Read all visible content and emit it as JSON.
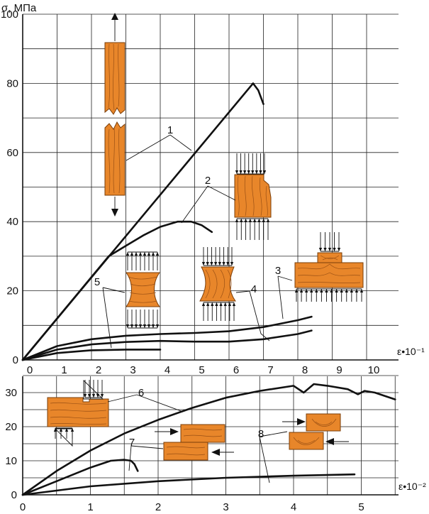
{
  "chart_data": [
    {
      "type": "line",
      "ylabel": "σ, МПа",
      "xlabel": "ε•10⁻¹",
      "x_ticks": [
        "0",
        "1",
        "2",
        "3",
        "4",
        "5",
        "6",
        "7",
        "8",
        "9",
        "10"
      ],
      "y_ticks": [
        "0",
        "20",
        "40",
        "60",
        "80",
        "100"
      ],
      "xlim": [
        0,
        11
      ],
      "ylim": [
        0,
        100
      ],
      "grid": true,
      "series": [
        {
          "name": "1",
          "points": [
            [
              0,
              0
            ],
            [
              6.7,
              80
            ],
            [
              6.85,
              78
            ],
            [
              7,
              74
            ]
          ]
        },
        {
          "name": "2",
          "points": [
            [
              0,
              0
            ],
            [
              2.5,
              30
            ],
            [
              3,
              33
            ],
            [
              3.5,
              36
            ],
            [
              4,
              38.5
            ],
            [
              4.5,
              40
            ],
            [
              4.9,
              40
            ],
            [
              5.2,
              39
            ],
            [
              5.5,
              37
            ]
          ]
        },
        {
          "name": "3",
          "points": [
            [
              0,
              0
            ],
            [
              1,
              4
            ],
            [
              2,
              6
            ],
            [
              3,
              7
            ],
            [
              4,
              7.5
            ],
            [
              5,
              7.8
            ],
            [
              6,
              8.3
            ],
            [
              7,
              9.5
            ],
            [
              8,
              11.5
            ],
            [
              8.4,
              12.5
            ]
          ]
        },
        {
          "name": "4",
          "points": [
            [
              0,
              0
            ],
            [
              1,
              3
            ],
            [
              2,
              4.5
            ],
            [
              3,
              5.2
            ],
            [
              4,
              5.5
            ],
            [
              5,
              5.3
            ],
            [
              6,
              5.3
            ],
            [
              7,
              6
            ],
            [
              8,
              7.5
            ],
            [
              8.4,
              8.5
            ]
          ]
        },
        {
          "name": "5",
          "points": [
            [
              0,
              0
            ],
            [
              1,
              2
            ],
            [
              2,
              2.8
            ],
            [
              3,
              3
            ],
            [
              4,
              3
            ]
          ]
        }
      ],
      "annotations": [
        "1",
        "2",
        "3",
        "4",
        "5"
      ]
    },
    {
      "type": "line",
      "xlabel": "ε•10⁻²",
      "x_ticks": [
        "0",
        "1",
        "2",
        "3",
        "4",
        "5"
      ],
      "y_ticks": [
        "0",
        "10",
        "20",
        "30"
      ],
      "xlim": [
        0,
        5.5
      ],
      "ylim": [
        0,
        36
      ],
      "grid": true,
      "series": [
        {
          "name": "6",
          "points": [
            [
              0,
              0
            ],
            [
              0.5,
              7
            ],
            [
              1,
              13
            ],
            [
              1.5,
              18
            ],
            [
              2,
              22
            ],
            [
              2.5,
              25.5
            ],
            [
              3,
              28.5
            ],
            [
              3.5,
              30.5
            ],
            [
              4,
              32
            ],
            [
              4.15,
              30
            ],
            [
              4.3,
              32.5
            ],
            [
              4.5,
              32
            ],
            [
              4.8,
              31
            ],
            [
              4.95,
              29.5
            ],
            [
              5.05,
              30.5
            ],
            [
              5.2,
              30
            ],
            [
              5.5,
              28
            ]
          ]
        },
        {
          "name": "7",
          "points": [
            [
              0,
              0
            ],
            [
              0.5,
              4
            ],
            [
              1,
              8
            ],
            [
              1.3,
              10
            ],
            [
              1.5,
              10.3
            ],
            [
              1.6,
              10
            ],
            [
              1.65,
              9
            ],
            [
              1.7,
              7
            ]
          ]
        },
        {
          "name": "8",
          "points": [
            [
              0,
              0
            ],
            [
              1,
              2.5
            ],
            [
              2,
              4
            ],
            [
              3,
              5
            ],
            [
              4,
              5.6
            ],
            [
              4.9,
              6
            ]
          ]
        }
      ],
      "annotations": [
        "6",
        "7",
        "8"
      ]
    }
  ]
}
